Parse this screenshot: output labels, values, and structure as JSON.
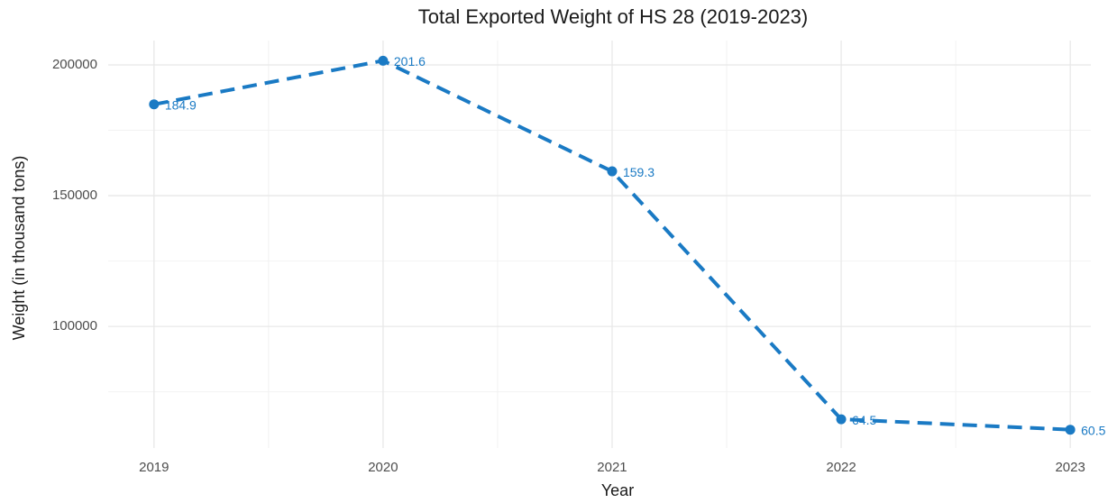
{
  "chart_data": {
    "type": "line",
    "title": "Total Exported Weight of HS 28 (2019-2023)",
    "x_label": "Year",
    "y_label": "Weight (in thousand tons)",
    "x": [
      2019,
      2020,
      2021,
      2022,
      2023
    ],
    "series": [
      {
        "name": "Weight",
        "color": "#1a7ac4",
        "values": [
          184900,
          201600,
          159300,
          64500,
          60500
        ],
        "value_labels": [
          "184.9",
          "201.6",
          "159.3",
          "64.5",
          "60.5"
        ]
      }
    ],
    "xlim": [
      2018.8,
      2023.09
    ],
    "xticks": [
      2019,
      2020,
      2021,
      2022,
      2023
    ],
    "minor_xticks": [
      2019.5,
      2020.5,
      2021.5,
      2022.5
    ],
    "ylim": [
      53500,
      209300
    ],
    "yticks": [
      100000,
      150000,
      200000
    ],
    "minor_yticks": [
      75000,
      125000,
      175000
    ],
    "grid": true,
    "line_style": "dashed"
  }
}
